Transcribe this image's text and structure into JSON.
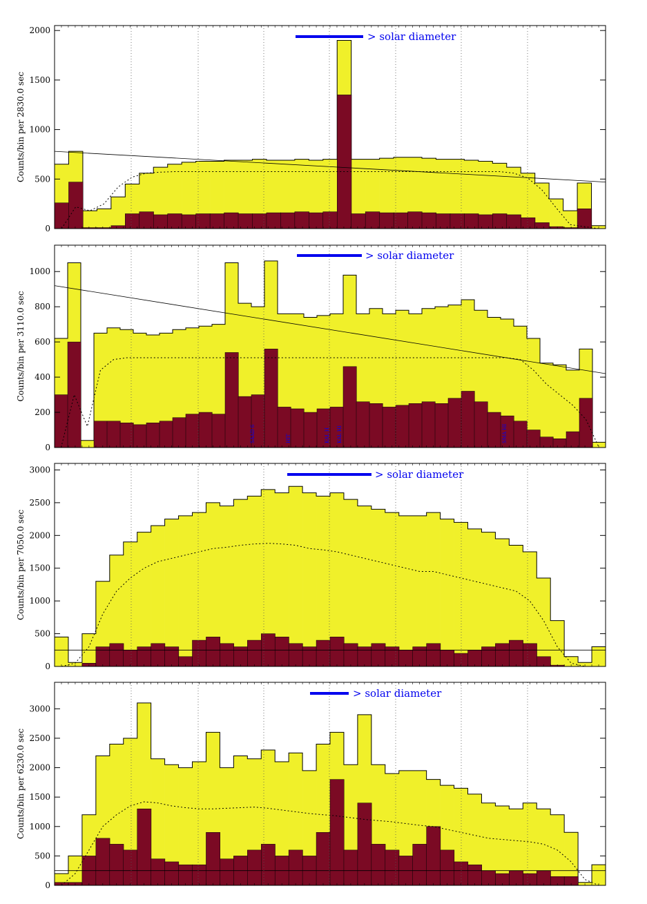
{
  "colors": {
    "background": "#ffffff",
    "outer_fill": "#f0f02a",
    "inner_fill": "#7b0a24",
    "outline": "#000000",
    "annotation": "#0000ee",
    "grid": "#555555"
  },
  "chart_data": [
    {
      "type": "area",
      "ylabel": "Counts/bin per  2830.0 sec",
      "ylim": [
        0,
        2050
      ],
      "yticks": [
        0,
        500,
        1000,
        1500,
        2000
      ],
      "grid": "vertical dotted",
      "diameter_label": "> solar diameter",
      "outer_counts": [
        650,
        780,
        180,
        200,
        320,
        450,
        560,
        620,
        650,
        670,
        680,
        680,
        690,
        690,
        700,
        690,
        690,
        700,
        690,
        700,
        1900,
        700,
        700,
        710,
        720,
        720,
        710,
        700,
        700,
        690,
        680,
        660,
        620,
        560,
        460,
        300,
        180,
        460,
        30
      ],
      "inner_counts": [
        260,
        470,
        10,
        10,
        30,
        150,
        170,
        140,
        150,
        140,
        150,
        150,
        160,
        150,
        150,
        160,
        160,
        170,
        160,
        170,
        1350,
        150,
        170,
        160,
        160,
        170,
        160,
        150,
        150,
        150,
        140,
        150,
        140,
        110,
        60,
        20,
        10,
        200,
        0
      ],
      "dotted_model": [
        0,
        220,
        180,
        250,
        420,
        520,
        560,
        570,
        575,
        575,
        575,
        575,
        575,
        575,
        575,
        575,
        575,
        575,
        575,
        575,
        575,
        575,
        575,
        575,
        575,
        575,
        575,
        575,
        575,
        575,
        575,
        575,
        560,
        510,
        390,
        210,
        40,
        20,
        0
      ],
      "trend_line": [
        780,
        470
      ],
      "labels": []
    },
    {
      "type": "area",
      "ylabel": "Counts/bin per  3110.0 sec",
      "ylim": [
        0,
        1150
      ],
      "yticks": [
        0,
        200,
        400,
        600,
        800,
        1000
      ],
      "grid": "vertical dotted",
      "diameter_label": "> solar diameter",
      "outer_counts": [
        620,
        1050,
        40,
        650,
        680,
        670,
        650,
        640,
        650,
        670,
        680,
        690,
        700,
        1050,
        820,
        800,
        1060,
        760,
        760,
        740,
        750,
        760,
        980,
        760,
        790,
        760,
        780,
        760,
        790,
        800,
        810,
        840,
        780,
        740,
        730,
        690,
        620,
        480,
        470,
        440,
        560,
        30
      ],
      "inner_counts": [
        300,
        600,
        0,
        150,
        150,
        140,
        130,
        140,
        150,
        170,
        190,
        200,
        190,
        540,
        290,
        300,
        560,
        230,
        220,
        200,
        220,
        230,
        460,
        260,
        250,
        230,
        240,
        250,
        260,
        250,
        280,
        320,
        260,
        200,
        180,
        150,
        100,
        60,
        50,
        90,
        280,
        0
      ],
      "dotted_model": [
        0,
        300,
        120,
        440,
        500,
        510,
        510,
        510,
        510,
        510,
        510,
        510,
        510,
        510,
        510,
        510,
        510,
        510,
        510,
        510,
        510,
        510,
        510,
        510,
        510,
        510,
        510,
        510,
        510,
        510,
        510,
        510,
        510,
        510,
        510,
        500,
        440,
        360,
        300,
        240,
        160,
        0
      ],
      "trend_line": [
        920,
        420
      ],
      "labels": [
        "SAAD 6",
        "HIT",
        "KAL H",
        "KAL HI",
        "SMA HI"
      ]
    },
    {
      "type": "area",
      "ylabel": "Counts/bin per  7050.0 sec",
      "ylim": [
        0,
        3100
      ],
      "yticks": [
        0,
        500,
        1000,
        1500,
        2000,
        2500,
        3000
      ],
      "grid": "vertical dotted",
      "diameter_label": "> solar diameter",
      "outer_counts": [
        450,
        60,
        500,
        1300,
        1700,
        1900,
        2050,
        2150,
        2250,
        2300,
        2350,
        2500,
        2450,
        2550,
        2600,
        2700,
        2650,
        2750,
        2650,
        2600,
        2650,
        2550,
        2450,
        2400,
        2350,
        2300,
        2300,
        2350,
        2250,
        2200,
        2100,
        2050,
        1950,
        1850,
        1750,
        1350,
        700,
        150,
        60,
        300
      ],
      "inner_counts": [
        0,
        0,
        50,
        300,
        350,
        250,
        300,
        350,
        300,
        150,
        400,
        450,
        350,
        300,
        400,
        500,
        450,
        350,
        300,
        400,
        450,
        350,
        300,
        350,
        300,
        250,
        300,
        350,
        250,
        200,
        250,
        300,
        350,
        400,
        350,
        150,
        20,
        0,
        0,
        0
      ],
      "dotted_model": [
        0,
        50,
        300,
        800,
        1150,
        1350,
        1500,
        1600,
        1650,
        1700,
        1750,
        1800,
        1820,
        1850,
        1870,
        1880,
        1870,
        1850,
        1800,
        1780,
        1750,
        1700,
        1650,
        1600,
        1550,
        1500,
        1450,
        1450,
        1400,
        1350,
        1300,
        1250,
        1200,
        1150,
        1000,
        700,
        300,
        50,
        0,
        0
      ],
      "trend_line": [
        250,
        250
      ],
      "labels": []
    },
    {
      "type": "area",
      "ylabel": "Counts/bin per  6230.0 sec",
      "ylim": [
        0,
        3450
      ],
      "yticks": [
        0,
        500,
        1000,
        1500,
        2000,
        2500,
        3000
      ],
      "grid": "vertical dotted",
      "diameter_label": "> solar diameter",
      "outer_counts": [
        200,
        500,
        1200,
        2200,
        2400,
        2500,
        3100,
        2150,
        2050,
        2000,
        2100,
        2600,
        2000,
        2200,
        2150,
        2300,
        2100,
        2250,
        1950,
        2400,
        2600,
        2050,
        2900,
        2050,
        1900,
        1950,
        1950,
        1800,
        1700,
        1650,
        1550,
        1400,
        1350,
        1300,
        1400,
        1300,
        1200,
        900,
        50,
        350
      ],
      "inner_counts": [
        50,
        50,
        500,
        800,
        700,
        600,
        1300,
        450,
        400,
        350,
        350,
        900,
        450,
        500,
        600,
        700,
        500,
        600,
        500,
        900,
        1800,
        600,
        1400,
        700,
        600,
        500,
        700,
        1000,
        600,
        400,
        350,
        250,
        200,
        250,
        200,
        250,
        150,
        150,
        0,
        0
      ],
      "dotted_model": [
        0,
        200,
        600,
        1000,
        1200,
        1350,
        1420,
        1400,
        1350,
        1320,
        1300,
        1300,
        1310,
        1320,
        1330,
        1310,
        1280,
        1250,
        1220,
        1200,
        1180,
        1150,
        1120,
        1100,
        1080,
        1050,
        1020,
        1000,
        950,
        900,
        850,
        800,
        780,
        760,
        740,
        700,
        600,
        400,
        100,
        0
      ],
      "trend_line": [
        250,
        250
      ],
      "labels": []
    }
  ]
}
